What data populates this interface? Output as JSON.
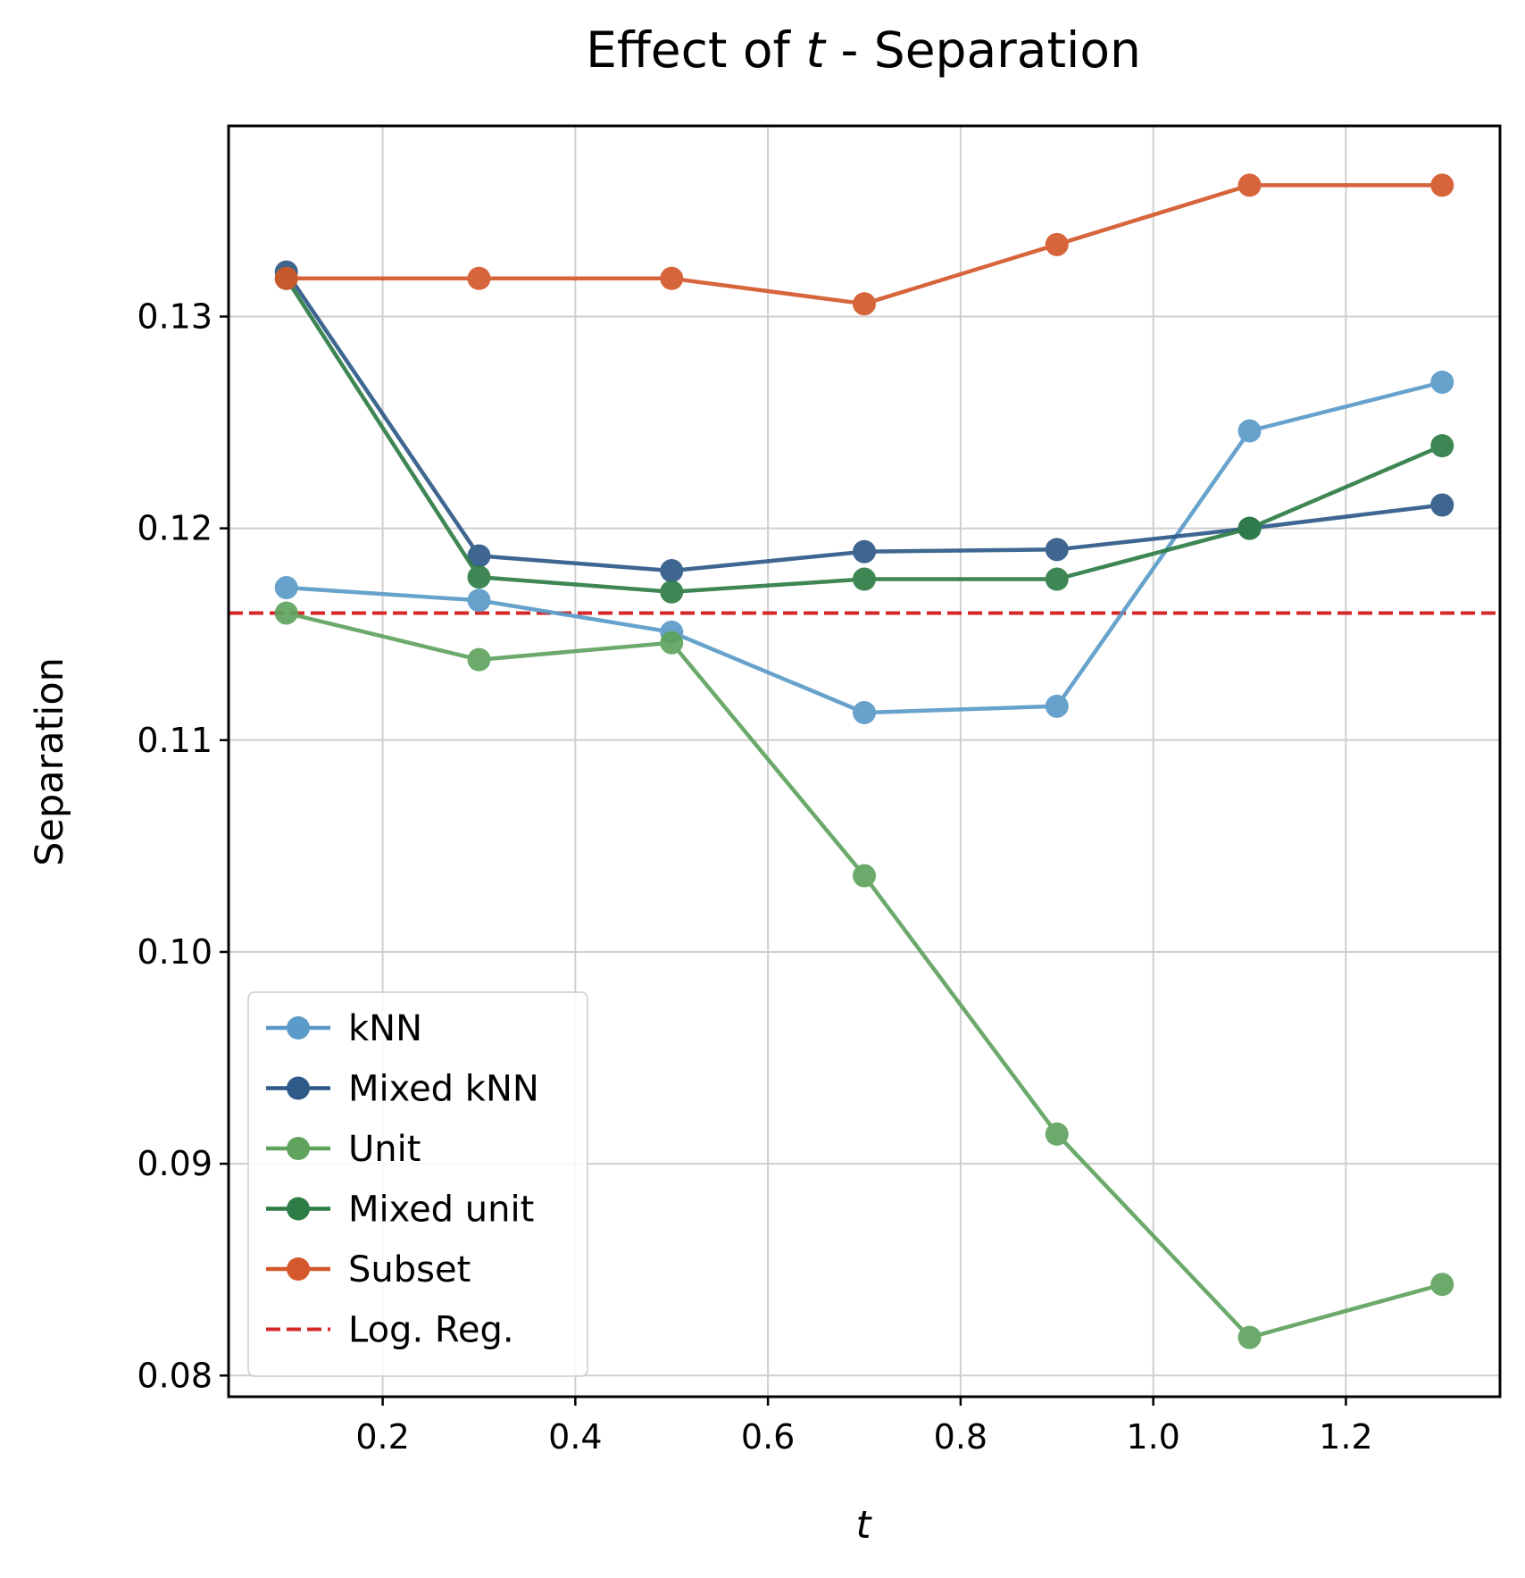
{
  "chart_data": {
    "type": "line",
    "title_prefix": "Effect of ",
    "title_var": "t",
    "title_suffix": " - Separation",
    "xlabel": "t",
    "ylabel": "Separation",
    "x": [
      0.1,
      0.3,
      0.5,
      0.7,
      0.9,
      1.1,
      1.3
    ],
    "xlim": [
      0.04,
      1.36
    ],
    "ylim": [
      0.079,
      0.139
    ],
    "xticks": [
      0.2,
      0.4,
      0.6,
      0.8,
      1.0,
      1.2
    ],
    "xtick_labels": [
      "0.2",
      "0.4",
      "0.6",
      "0.8",
      "1.0",
      "1.2"
    ],
    "yticks": [
      0.08,
      0.09,
      0.1,
      0.11,
      0.12,
      0.13
    ],
    "ytick_labels": [
      "0.08",
      "0.09",
      "0.10",
      "0.11",
      "0.12",
      "0.13"
    ],
    "grid": true,
    "legend_position": "lower-left",
    "series": [
      {
        "name": "kNN",
        "color": "#5b9bc9",
        "values": [
          0.1172,
          0.1166,
          0.1151,
          0.1113,
          0.1116,
          0.1246,
          0.1269
        ]
      },
      {
        "name": "Mixed kNN",
        "color": "#2e5a88",
        "values": [
          0.1321,
          0.1187,
          0.118,
          0.1189,
          0.119,
          0.12,
          0.1211
        ]
      },
      {
        "name": "Unit",
        "color": "#5fa35e",
        "values": [
          0.116,
          0.1138,
          0.1146,
          0.1036,
          0.0914,
          0.0818,
          0.0843
        ]
      },
      {
        "name": "Mixed unit",
        "color": "#2e7d46",
        "values": [
          0.1318,
          0.1177,
          0.117,
          0.1176,
          0.1176,
          0.12,
          0.1239
        ]
      },
      {
        "name": "Subset",
        "color": "#d4582b",
        "values": [
          0.1318,
          0.1318,
          0.1318,
          0.1306,
          0.1334,
          0.1362,
          0.1362
        ]
      }
    ],
    "reference_line": {
      "name": "Log. Reg.",
      "color": "#d62728",
      "value": 0.116
    }
  }
}
